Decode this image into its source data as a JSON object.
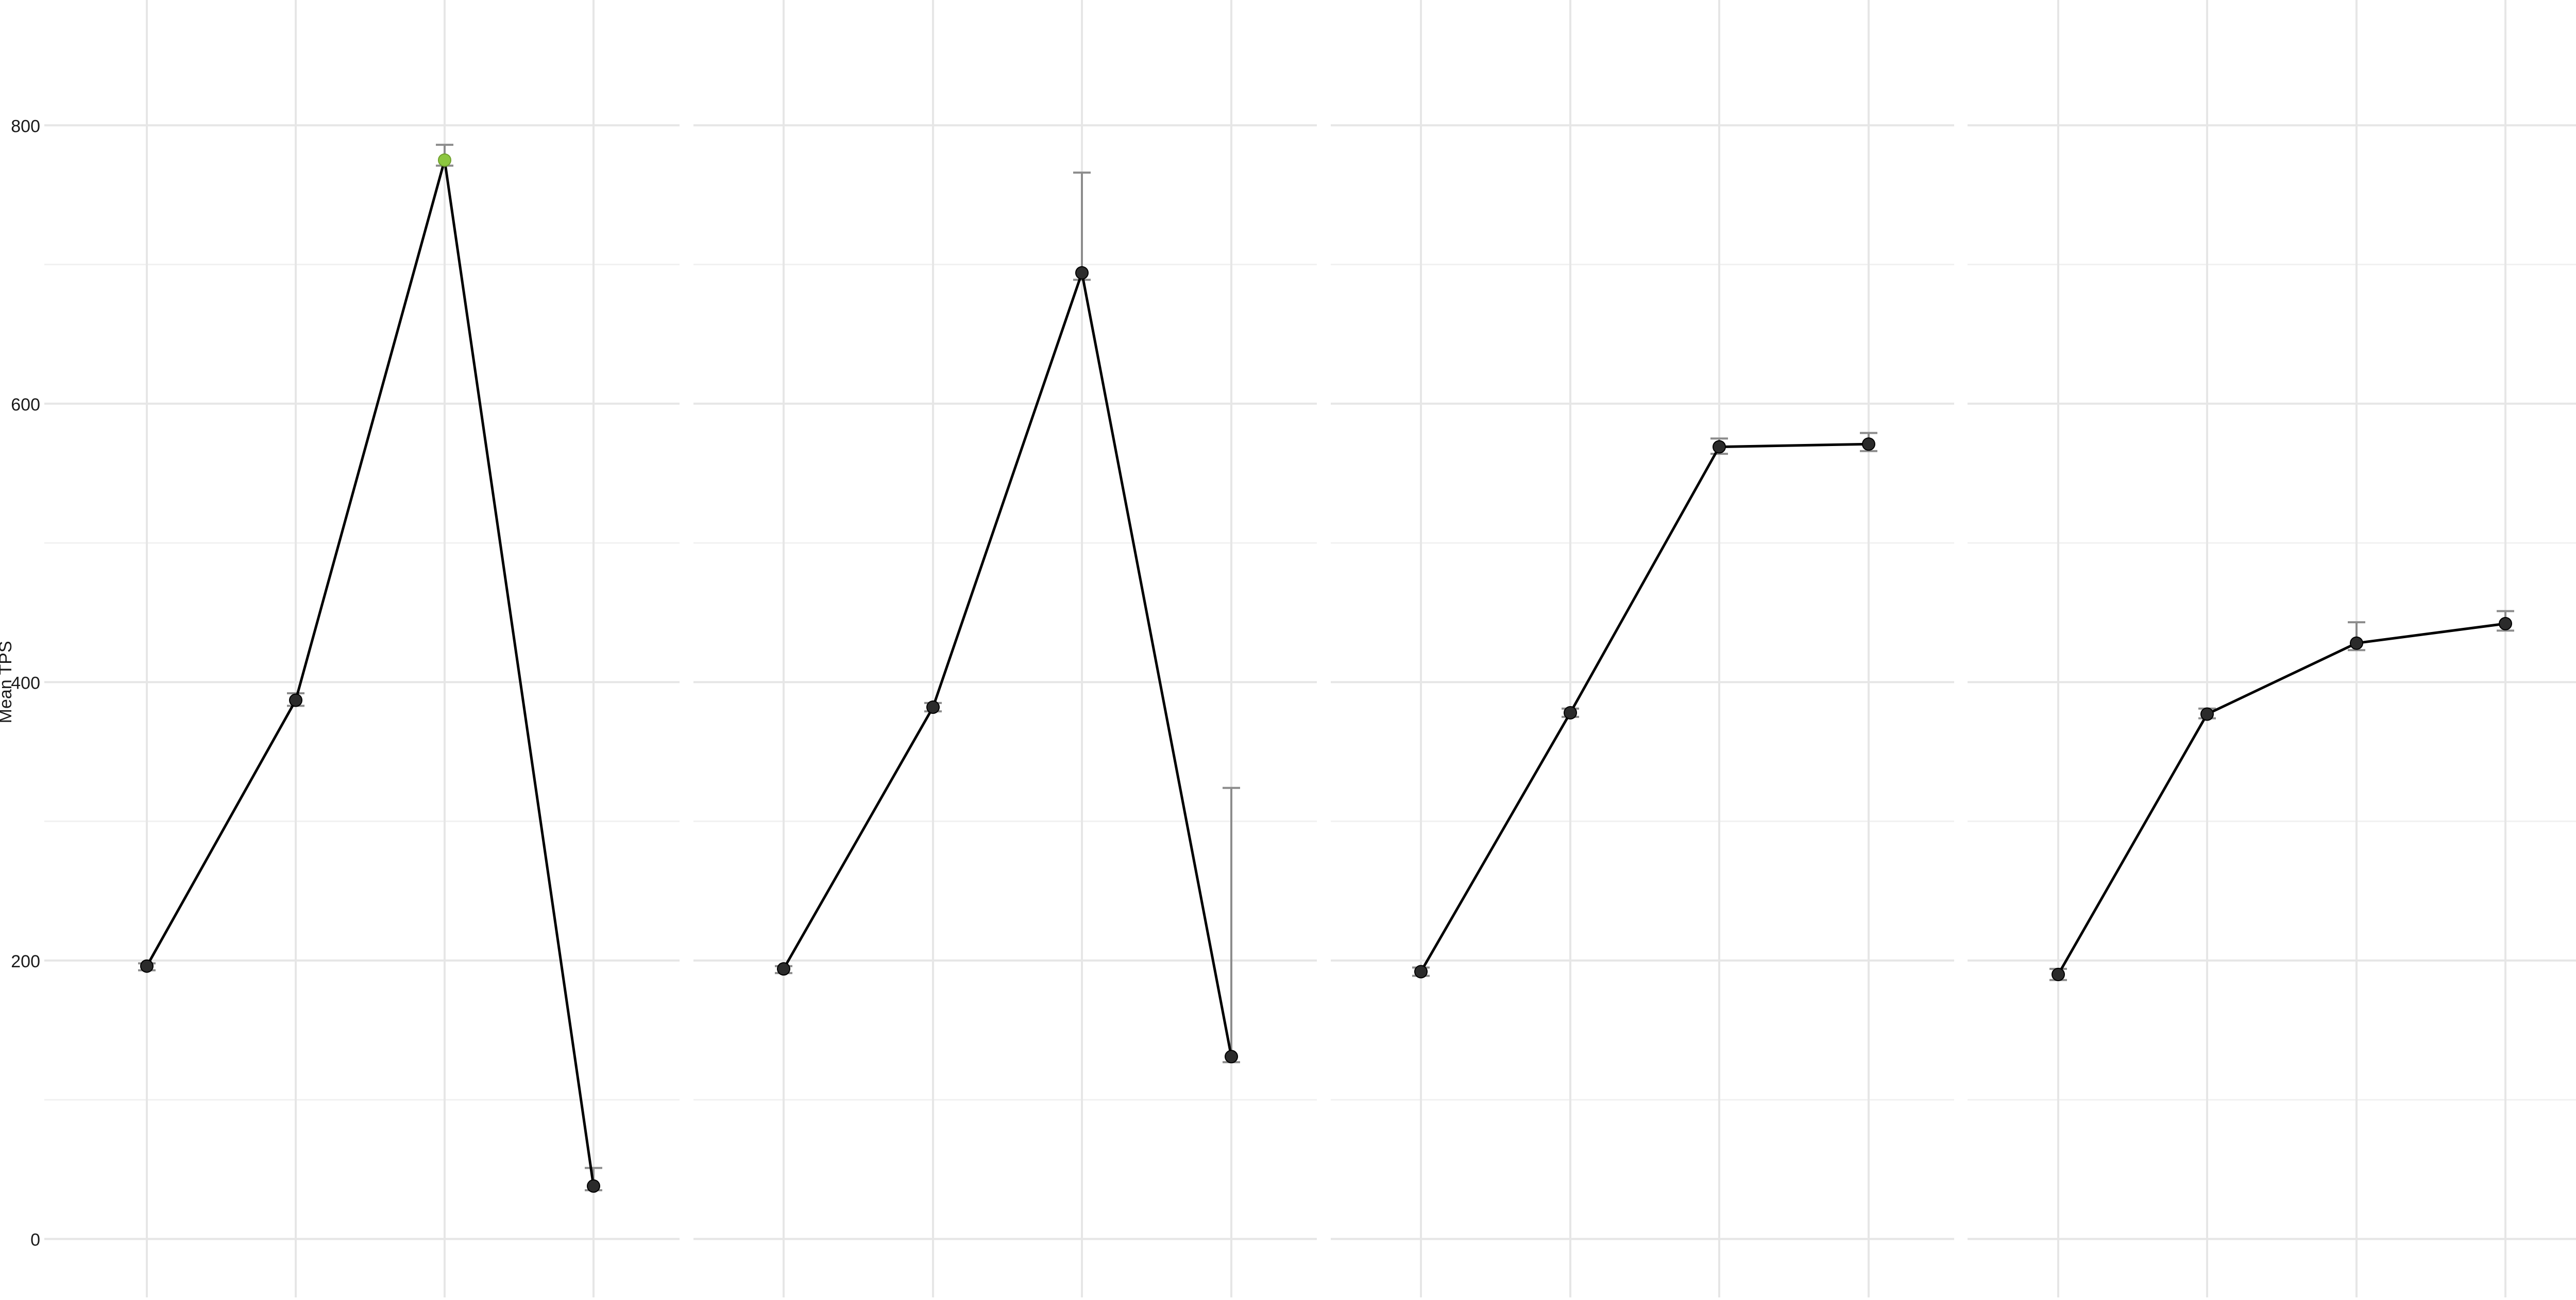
{
  "chart_data": {
    "type": "line",
    "title": "",
    "xlabel": "",
    "ylabel": "Mean TPS",
    "ylim": [
      -42,
      890
    ],
    "y_ticks": [
      0,
      200,
      400,
      600,
      800
    ],
    "y_minor_ticks": [
      100,
      300,
      500,
      700
    ],
    "grid": true,
    "x_positions": [
      1,
      2,
      3,
      4
    ],
    "colors": {
      "line": "#000000",
      "point": "#2b2b2b",
      "highlight_point": "#8cc63f",
      "error_bar": "#8c8c8c",
      "grid": "#e6e6e6"
    },
    "panels": [
      {
        "values": [
          196,
          387,
          775,
          38
        ],
        "error_low": [
          193,
          383,
          771,
          35
        ],
        "error_high": [
          198,
          392,
          786,
          51
        ],
        "highlight_index": 2
      },
      {
        "values": [
          194,
          382,
          694,
          131
        ],
        "error_low": [
          191,
          379,
          689,
          127
        ],
        "error_high": [
          196,
          385,
          766,
          324
        ],
        "highlight_index": null
      },
      {
        "values": [
          192,
          378,
          569,
          571
        ],
        "error_low": [
          189,
          375,
          564,
          566
        ],
        "error_high": [
          195,
          381,
          575,
          579
        ],
        "highlight_index": null
      },
      {
        "values": [
          190,
          377,
          428,
          442
        ],
        "error_low": [
          186,
          374,
          423,
          437
        ],
        "error_high": [
          194,
          381,
          443,
          451
        ],
        "highlight_index": null
      }
    ]
  }
}
